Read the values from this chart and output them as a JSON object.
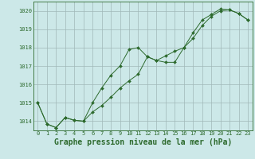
{
  "title": "Graphe pression niveau de la mer (hPa)",
  "x_labels": [
    "0",
    "1",
    "2",
    "3",
    "4",
    "5",
    "6",
    "7",
    "8",
    "9",
    "10",
    "11",
    "12",
    "13",
    "14",
    "15",
    "16",
    "17",
    "18",
    "19",
    "20",
    "21",
    "22",
    "23"
  ],
  "series1_y": [
    1015.0,
    1013.85,
    1013.65,
    1014.2,
    1014.05,
    1014.0,
    1014.5,
    1014.85,
    1015.3,
    1015.8,
    1016.2,
    1016.55,
    1017.5,
    1017.3,
    1017.55,
    1017.8,
    1018.0,
    1018.5,
    1019.2,
    1019.7,
    1020.0,
    1020.05,
    1019.85,
    1019.5
  ],
  "series2_y": [
    1015.0,
    1013.85,
    1013.65,
    1014.2,
    1014.05,
    1014.0,
    1015.0,
    1015.8,
    1016.5,
    1017.0,
    1017.9,
    1018.0,
    1017.5,
    1017.3,
    1017.2,
    1017.2,
    1018.0,
    1018.8,
    1019.5,
    1019.8,
    1020.1,
    1020.05,
    1019.85,
    1019.5
  ],
  "ylim_min": 1013.5,
  "ylim_max": 1020.5,
  "yticks": [
    1014,
    1015,
    1016,
    1017,
    1018,
    1019,
    1020
  ],
  "line_color": "#2d6a2d",
  "bg_color": "#cce8e8",
  "grid_color": "#a0b8b8",
  "title_fontsize": 7,
  "tick_fontsize": 5,
  "xlabel_fontsize": 7
}
